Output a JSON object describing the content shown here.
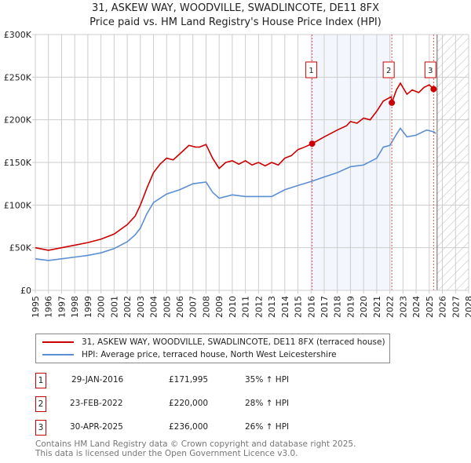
{
  "chart_data": {
    "type": "line",
    "title": "31, ASKEW WAY, WOODVILLE, SWADLINCOTE, DE11 8FX",
    "subtitle": "Price paid vs. HM Land Registry's House Price Index (HPI)",
    "xlim": [
      1995,
      2028
    ],
    "ylim": [
      0,
      300000
    ],
    "x_ticks": [
      "1995",
      "1996",
      "1997",
      "1998",
      "1999",
      "2000",
      "2001",
      "2002",
      "2003",
      "2004",
      "2005",
      "2006",
      "2007",
      "2008",
      "2009",
      "2010",
      "2011",
      "2012",
      "2013",
      "2014",
      "2015",
      "2016",
      "2017",
      "2018",
      "2019",
      "2020",
      "2021",
      "2022",
      "2023",
      "2024",
      "2025",
      "2026",
      "2027",
      "2028"
    ],
    "y_ticks": [
      {
        "v": 0,
        "label": "£0"
      },
      {
        "v": 50000,
        "label": "£50K"
      },
      {
        "v": 100000,
        "label": "£100K"
      },
      {
        "v": 150000,
        "label": "£150K"
      },
      {
        "v": 200000,
        "label": "£200K"
      },
      {
        "v": 250000,
        "label": "£250K"
      },
      {
        "v": 300000,
        "label": "£300K"
      }
    ],
    "grid": true,
    "shaded_range": [
      2016.08,
      2022.15
    ],
    "forecast_hatch_from": 2025.6,
    "series": [
      {
        "name": "31, ASKEW WAY, WOODVILLE, SWADLINCOTE, DE11 8FX (terraced house)",
        "color": "#cc0000",
        "x": [
          1995,
          1996,
          1997,
          1998,
          1999,
          2000,
          2001,
          2002,
          2002.6,
          2003,
          2003.5,
          2004,
          2004.5,
          2005,
          2005.5,
          2006,
          2006.7,
          2007.2,
          2007.5,
          2008,
          2008.5,
          2009,
          2009.5,
          2010,
          2010.5,
          2011,
          2011.5,
          2012,
          2012.5,
          2013,
          2013.5,
          2014,
          2014.5,
          2015,
          2015.5,
          2016.08,
          2017,
          2018,
          2018.7,
          2019,
          2019.5,
          2020,
          2020.5,
          2021,
          2021.5,
          2022.1,
          2022.15,
          2022.5,
          2022.8,
          2023.3,
          2023.7,
          2024.2,
          2024.6,
          2025,
          2025.33
        ],
        "y": [
          50000,
          47000,
          50000,
          53000,
          56000,
          60000,
          66000,
          77000,
          87000,
          100000,
          120000,
          138000,
          148000,
          155000,
          153000,
          160000,
          170000,
          168000,
          168000,
          171000,
          155000,
          143000,
          150000,
          152000,
          148000,
          152000,
          147000,
          150000,
          146000,
          150000,
          147000,
          155000,
          158000,
          165000,
          168000,
          171995,
          180000,
          188000,
          193000,
          198000,
          196000,
          202000,
          200000,
          210000,
          222000,
          227000,
          220000,
          235000,
          243000,
          230000,
          235000,
          232000,
          238000,
          241000,
          236000
        ]
      },
      {
        "name": "HPI: Average price, terraced house, North West Leicestershire",
        "color": "#5b8fd4",
        "x": [
          1995,
          1996,
          1997,
          1998,
          1999,
          2000,
          2001,
          2002,
          2002.6,
          2003,
          2003.5,
          2004,
          2005,
          2006,
          2007,
          2008,
          2008.5,
          2009,
          2010,
          2011,
          2012,
          2013,
          2014,
          2015,
          2016.08,
          2017,
          2018,
          2019,
          2020,
          2021,
          2021.5,
          2022,
          2022.5,
          2022.8,
          2023.3,
          2024,
          2024.8,
          2025.33,
          2025.5
        ],
        "y": [
          37000,
          35000,
          37000,
          39000,
          41000,
          44000,
          49000,
          57000,
          65000,
          73000,
          90000,
          103000,
          113000,
          118000,
          125000,
          127000,
          115000,
          108000,
          112000,
          110000,
          110000,
          110000,
          118000,
          123000,
          128000,
          133000,
          138000,
          145000,
          147000,
          155000,
          168000,
          170000,
          183000,
          190000,
          180000,
          182000,
          188000,
          186000,
          184000
        ]
      }
    ],
    "sales": [
      {
        "num": "1",
        "x": 2016.08,
        "y": 171995,
        "date": "29-JAN-2016",
        "price": "£171,995",
        "hpi": "35% ↑ HPI"
      },
      {
        "num": "2",
        "x": 2022.15,
        "y": 220000,
        "date": "23-FEB-2022",
        "price": "£220,000",
        "hpi": "28% ↑ HPI"
      },
      {
        "num": "3",
        "x": 2025.33,
        "y": 236000,
        "date": "30-APR-2025",
        "price": "£236,000",
        "hpi": "26% ↑ HPI"
      }
    ]
  },
  "footer": {
    "line1": "Contains HM Land Registry data © Crown copyright and database right 2025.",
    "line2": "This data is licensed under the Open Government Licence v3.0."
  }
}
